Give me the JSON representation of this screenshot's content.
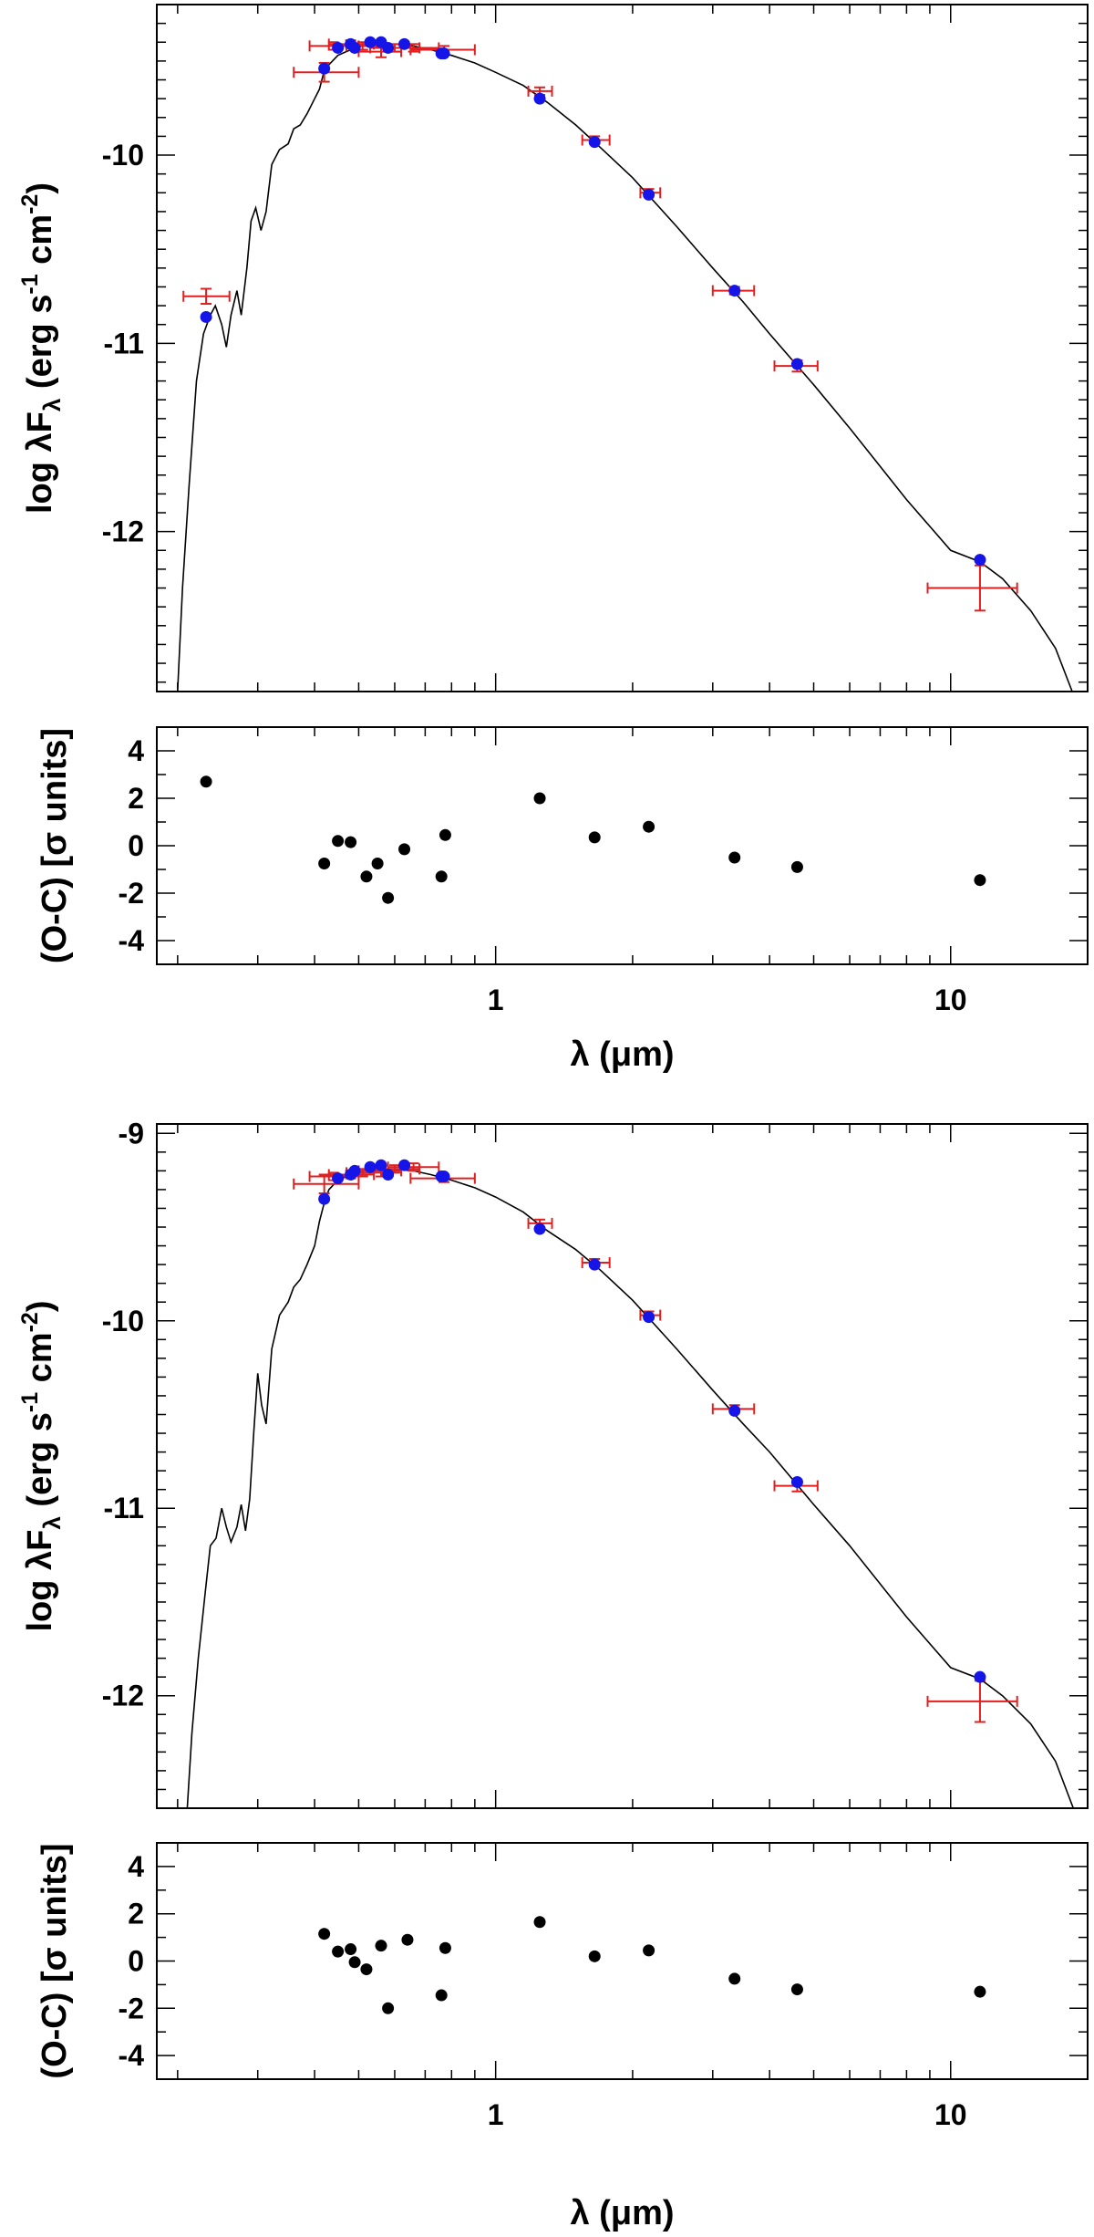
{
  "colors": {
    "model_line": "#000000",
    "observed_error": "#e02020",
    "model_point": "#1515e8",
    "residual_point": "#000000",
    "axes": "#000000",
    "background": "#ffffff"
  },
  "chart_data": [
    {
      "type": "scatter",
      "title": "",
      "xlabel": "λ (μm)",
      "xscale": "log",
      "xlim": [
        0.18,
        20
      ],
      "x_tick_labels": [
        "1",
        "10"
      ],
      "sed": {
        "ylabel": "log λF_λ (erg s^-1 cm^-2)",
        "ylabel_parts": {
          "pre": "log λF",
          "sub": "λ",
          "unit_open": " (erg s",
          "exp1": "-1",
          "mid": " cm",
          "exp2": "-2",
          "close": ")"
        },
        "ylim": [
          -12.85,
          -9.2
        ],
        "y_tick_labels": [
          "-10",
          "-11",
          "-12"
        ],
        "y_ticks": [
          -10,
          -11,
          -12
        ],
        "observed": [
          {
            "x": 0.231,
            "y": -10.75,
            "xerr": [
              0.206,
              0.26
            ],
            "yerr": 0.04
          },
          {
            "x": 0.42,
            "y": -9.56,
            "xerr": [
              0.36,
              0.5
            ],
            "yerr": 0.05
          },
          {
            "x": 0.44,
            "y": -9.42,
            "xerr": [
              0.39,
              0.5
            ],
            "yerr": 0.02
          },
          {
            "x": 0.48,
            "y": -9.41,
            "xerr": [
              0.43,
              0.54
            ],
            "yerr": 0.02
          },
          {
            "x": 0.51,
            "y": -9.42,
            "xerr": [
              0.47,
              0.57
            ],
            "yerr": 0.02
          },
          {
            "x": 0.56,
            "y": -9.45,
            "xerr": [
              0.5,
              0.62
            ],
            "yerr": 0.03
          },
          {
            "x": 0.6,
            "y": -9.43,
            "xerr": [
              0.53,
              0.68
            ],
            "yerr": 0.02
          },
          {
            "x": 0.66,
            "y": -9.43,
            "xerr": [
              0.58,
              0.75
            ],
            "yerr": 0.02
          },
          {
            "x": 0.77,
            "y": -9.44,
            "xerr": [
              0.65,
              0.9
            ],
            "yerr": 0.02
          },
          {
            "x": 1.25,
            "y": -9.66,
            "xerr": [
              1.18,
              1.33
            ],
            "yerr": 0.02
          },
          {
            "x": 1.65,
            "y": -9.92,
            "xerr": [
              1.55,
              1.78
            ],
            "yerr": 0.02
          },
          {
            "x": 2.17,
            "y": -10.2,
            "xerr": [
              2.08,
              2.3
            ],
            "yerr": 0.02
          },
          {
            "x": 3.35,
            "y": -10.72,
            "xerr": [
              3.0,
              3.7
            ],
            "yerr": 0.02
          },
          {
            "x": 4.6,
            "y": -11.12,
            "xerr": [
              4.1,
              5.1
            ],
            "yerr": 0.03
          },
          {
            "x": 11.6,
            "y": -12.3,
            "xerr": [
              8.9,
              14.0
            ],
            "yerr": 0.12
          }
        ],
        "model_points": [
          {
            "x": 0.231,
            "y": -10.86
          },
          {
            "x": 0.42,
            "y": -9.54
          },
          {
            "x": 0.45,
            "y": -9.43
          },
          {
            "x": 0.48,
            "y": -9.41
          },
          {
            "x": 0.49,
            "y": -9.43
          },
          {
            "x": 0.53,
            "y": -9.4
          },
          {
            "x": 0.56,
            "y": -9.4
          },
          {
            "x": 0.58,
            "y": -9.43
          },
          {
            "x": 0.63,
            "y": -9.41
          },
          {
            "x": 0.76,
            "y": -9.46
          },
          {
            "x": 0.77,
            "y": -9.46
          },
          {
            "x": 1.25,
            "y": -9.7
          },
          {
            "x": 1.65,
            "y": -9.93
          },
          {
            "x": 2.17,
            "y": -10.21
          },
          {
            "x": 3.35,
            "y": -10.72
          },
          {
            "x": 4.6,
            "y": -11.11
          },
          {
            "x": 11.6,
            "y": -12.15
          }
        ],
        "model_curve": [
          [
            0.2,
            -12.85
          ],
          [
            0.205,
            -12.3
          ],
          [
            0.212,
            -11.75
          ],
          [
            0.22,
            -11.2
          ],
          [
            0.228,
            -10.95
          ],
          [
            0.236,
            -10.85
          ],
          [
            0.242,
            -10.8
          ],
          [
            0.25,
            -10.9
          ],
          [
            0.256,
            -11.02
          ],
          [
            0.262,
            -10.85
          ],
          [
            0.27,
            -10.72
          ],
          [
            0.276,
            -10.85
          ],
          [
            0.284,
            -10.6
          ],
          [
            0.29,
            -10.35
          ],
          [
            0.297,
            -10.28
          ],
          [
            0.305,
            -10.4
          ],
          [
            0.313,
            -10.3
          ],
          [
            0.322,
            -10.05
          ],
          [
            0.335,
            -9.97
          ],
          [
            0.35,
            -9.94
          ],
          [
            0.36,
            -9.86
          ],
          [
            0.372,
            -9.84
          ],
          [
            0.385,
            -9.78
          ],
          [
            0.4,
            -9.7
          ],
          [
            0.41,
            -9.65
          ],
          [
            0.42,
            -9.55
          ],
          [
            0.43,
            -9.52
          ],
          [
            0.45,
            -9.47
          ],
          [
            0.48,
            -9.44
          ],
          [
            0.51,
            -9.42
          ],
          [
            0.55,
            -9.41
          ],
          [
            0.6,
            -9.41
          ],
          [
            0.66,
            -9.42
          ],
          [
            0.72,
            -9.44
          ],
          [
            0.8,
            -9.47
          ],
          [
            0.9,
            -9.51
          ],
          [
            1.0,
            -9.56
          ],
          [
            1.15,
            -9.63
          ],
          [
            1.3,
            -9.72
          ],
          [
            1.5,
            -9.84
          ],
          [
            1.7,
            -9.96
          ],
          [
            2.0,
            -10.12
          ],
          [
            2.5,
            -10.38
          ],
          [
            3.0,
            -10.6
          ],
          [
            3.5,
            -10.78
          ],
          [
            4.0,
            -10.95
          ],
          [
            5.0,
            -11.22
          ],
          [
            6.0,
            -11.45
          ],
          [
            8.0,
            -11.83
          ],
          [
            10.0,
            -12.1
          ],
          [
            11.6,
            -12.16
          ],
          [
            13.0,
            -12.25
          ],
          [
            15.0,
            -12.42
          ],
          [
            17.0,
            -12.62
          ],
          [
            18.5,
            -12.85
          ]
        ]
      },
      "residuals": {
        "ylabel": "(O-C) [σ units]",
        "ylim": [
          -5,
          5
        ],
        "y_tick_labels": [
          "4",
          "2",
          "0",
          "-2",
          "-4"
        ],
        "y_ticks": [
          4,
          2,
          0,
          -2,
          -4
        ],
        "points": [
          {
            "x": 0.231,
            "y": 2.7
          },
          {
            "x": 0.42,
            "y": -0.75
          },
          {
            "x": 0.45,
            "y": 0.2
          },
          {
            "x": 0.48,
            "y": 0.15
          },
          {
            "x": 0.52,
            "y": -1.3
          },
          {
            "x": 0.55,
            "y": -0.75
          },
          {
            "x": 0.58,
            "y": -2.2
          },
          {
            "x": 0.63,
            "y": -0.15
          },
          {
            "x": 0.76,
            "y": -1.3
          },
          {
            "x": 0.775,
            "y": 0.45
          },
          {
            "x": 1.25,
            "y": 2.0
          },
          {
            "x": 1.65,
            "y": 0.35
          },
          {
            "x": 2.17,
            "y": 0.8
          },
          {
            "x": 3.35,
            "y": -0.5
          },
          {
            "x": 4.6,
            "y": -0.9
          },
          {
            "x": 11.6,
            "y": -1.45
          }
        ]
      }
    },
    {
      "type": "scatter",
      "title": "",
      "xlabel": "λ (μm)",
      "xscale": "log",
      "xlim": [
        0.18,
        20
      ],
      "x_tick_labels": [
        "1",
        "10"
      ],
      "sed": {
        "ylabel": "log λF_λ (erg s^-1 cm^-2)",
        "ylabel_parts": {
          "pre": "log λF",
          "sub": "λ",
          "unit_open": " (erg s",
          "exp1": "-1",
          "mid": " cm",
          "exp2": "-2",
          "close": ")"
        },
        "ylim": [
          -12.6,
          -8.95
        ],
        "y_tick_labels": [
          "-9",
          "-10",
          "-11",
          "-12"
        ],
        "y_ticks": [
          -9,
          -10,
          -11,
          -12
        ],
        "observed": [
          {
            "x": 0.42,
            "y": -9.27,
            "xerr": [
              0.36,
              0.5
            ],
            "yerr": 0.05
          },
          {
            "x": 0.44,
            "y": -9.23,
            "xerr": [
              0.39,
              0.5
            ],
            "yerr": 0.02
          },
          {
            "x": 0.48,
            "y": -9.22,
            "xerr": [
              0.43,
              0.54
            ],
            "yerr": 0.02
          },
          {
            "x": 0.51,
            "y": -9.21,
            "xerr": [
              0.47,
              0.57
            ],
            "yerr": 0.02
          },
          {
            "x": 0.56,
            "y": -9.2,
            "xerr": [
              0.5,
              0.62
            ],
            "yerr": 0.03
          },
          {
            "x": 0.6,
            "y": -9.19,
            "xerr": [
              0.53,
              0.68
            ],
            "yerr": 0.02
          },
          {
            "x": 0.66,
            "y": -9.18,
            "xerr": [
              0.58,
              0.75
            ],
            "yerr": 0.02
          },
          {
            "x": 0.77,
            "y": -9.24,
            "xerr": [
              0.65,
              0.9
            ],
            "yerr": 0.02
          },
          {
            "x": 1.25,
            "y": -9.48,
            "xerr": [
              1.18,
              1.33
            ],
            "yerr": 0.02
          },
          {
            "x": 1.65,
            "y": -9.69,
            "xerr": [
              1.55,
              1.78
            ],
            "yerr": 0.02
          },
          {
            "x": 2.17,
            "y": -9.97,
            "xerr": [
              2.08,
              2.3
            ],
            "yerr": 0.02
          },
          {
            "x": 3.35,
            "y": -10.47,
            "xerr": [
              3.0,
              3.7
            ],
            "yerr": 0.02
          },
          {
            "x": 4.6,
            "y": -10.88,
            "xerr": [
              4.1,
              5.1
            ],
            "yerr": 0.03
          },
          {
            "x": 11.6,
            "y": -12.03,
            "xerr": [
              8.9,
              14.0
            ],
            "yerr": 0.11
          }
        ],
        "model_points": [
          {
            "x": 0.42,
            "y": -9.35
          },
          {
            "x": 0.45,
            "y": -9.24
          },
          {
            "x": 0.48,
            "y": -9.22
          },
          {
            "x": 0.49,
            "y": -9.2
          },
          {
            "x": 0.53,
            "y": -9.18
          },
          {
            "x": 0.56,
            "y": -9.17
          },
          {
            "x": 0.58,
            "y": -9.22
          },
          {
            "x": 0.63,
            "y": -9.17
          },
          {
            "x": 0.76,
            "y": -9.23
          },
          {
            "x": 0.77,
            "y": -9.23
          },
          {
            "x": 1.25,
            "y": -9.51
          },
          {
            "x": 1.65,
            "y": -9.7
          },
          {
            "x": 2.17,
            "y": -9.98
          },
          {
            "x": 3.35,
            "y": -10.48
          },
          {
            "x": 4.6,
            "y": -10.86
          },
          {
            "x": 11.6,
            "y": -11.9
          }
        ],
        "model_curve": [
          [
            0.21,
            -12.6
          ],
          [
            0.215,
            -12.2
          ],
          [
            0.222,
            -11.8
          ],
          [
            0.23,
            -11.45
          ],
          [
            0.236,
            -11.2
          ],
          [
            0.243,
            -11.16
          ],
          [
            0.25,
            -11.0
          ],
          [
            0.256,
            -11.1
          ],
          [
            0.262,
            -11.18
          ],
          [
            0.27,
            -11.1
          ],
          [
            0.276,
            -10.98
          ],
          [
            0.282,
            -11.12
          ],
          [
            0.288,
            -10.95
          ],
          [
            0.294,
            -10.6
          ],
          [
            0.3,
            -10.28
          ],
          [
            0.306,
            -10.45
          ],
          [
            0.313,
            -10.55
          ],
          [
            0.322,
            -10.15
          ],
          [
            0.335,
            -9.97
          ],
          [
            0.35,
            -9.9
          ],
          [
            0.36,
            -9.82
          ],
          [
            0.372,
            -9.78
          ],
          [
            0.385,
            -9.7
          ],
          [
            0.4,
            -9.6
          ],
          [
            0.41,
            -9.47
          ],
          [
            0.42,
            -9.37
          ],
          [
            0.43,
            -9.3
          ],
          [
            0.45,
            -9.25
          ],
          [
            0.48,
            -9.22
          ],
          [
            0.51,
            -9.2
          ],
          [
            0.55,
            -9.19
          ],
          [
            0.6,
            -9.19
          ],
          [
            0.66,
            -9.2
          ],
          [
            0.72,
            -9.22
          ],
          [
            0.8,
            -9.25
          ],
          [
            0.9,
            -9.29
          ],
          [
            1.0,
            -9.34
          ],
          [
            1.15,
            -9.42
          ],
          [
            1.3,
            -9.52
          ],
          [
            1.5,
            -9.62
          ],
          [
            1.7,
            -9.73
          ],
          [
            2.0,
            -9.89
          ],
          [
            2.5,
            -10.15
          ],
          [
            3.0,
            -10.37
          ],
          [
            3.5,
            -10.55
          ],
          [
            4.0,
            -10.7
          ],
          [
            5.0,
            -10.98
          ],
          [
            6.0,
            -11.2
          ],
          [
            8.0,
            -11.58
          ],
          [
            10.0,
            -11.85
          ],
          [
            11.6,
            -11.91
          ],
          [
            13.0,
            -12.0
          ],
          [
            15.0,
            -12.15
          ],
          [
            17.0,
            -12.35
          ],
          [
            18.6,
            -12.6
          ]
        ]
      },
      "residuals": {
        "ylabel": "(O-C) [σ units]",
        "ylim": [
          -5,
          5
        ],
        "y_tick_labels": [
          "4",
          "2",
          "0",
          "-2",
          "-4"
        ],
        "y_ticks": [
          4,
          2,
          0,
          -2,
          -4
        ],
        "points": [
          {
            "x": 0.42,
            "y": 1.15
          },
          {
            "x": 0.45,
            "y": 0.4
          },
          {
            "x": 0.48,
            "y": 0.5
          },
          {
            "x": 0.49,
            "y": -0.05
          },
          {
            "x": 0.52,
            "y": -0.35
          },
          {
            "x": 0.56,
            "y": 0.65
          },
          {
            "x": 0.58,
            "y": -2.0
          },
          {
            "x": 0.64,
            "y": 0.9
          },
          {
            "x": 0.76,
            "y": -1.45
          },
          {
            "x": 0.775,
            "y": 0.55
          },
          {
            "x": 1.25,
            "y": 1.65
          },
          {
            "x": 1.65,
            "y": 0.2
          },
          {
            "x": 2.17,
            "y": 0.45
          },
          {
            "x": 3.35,
            "y": -0.75
          },
          {
            "x": 4.6,
            "y": -1.2
          },
          {
            "x": 11.6,
            "y": -1.3
          }
        ]
      }
    }
  ]
}
